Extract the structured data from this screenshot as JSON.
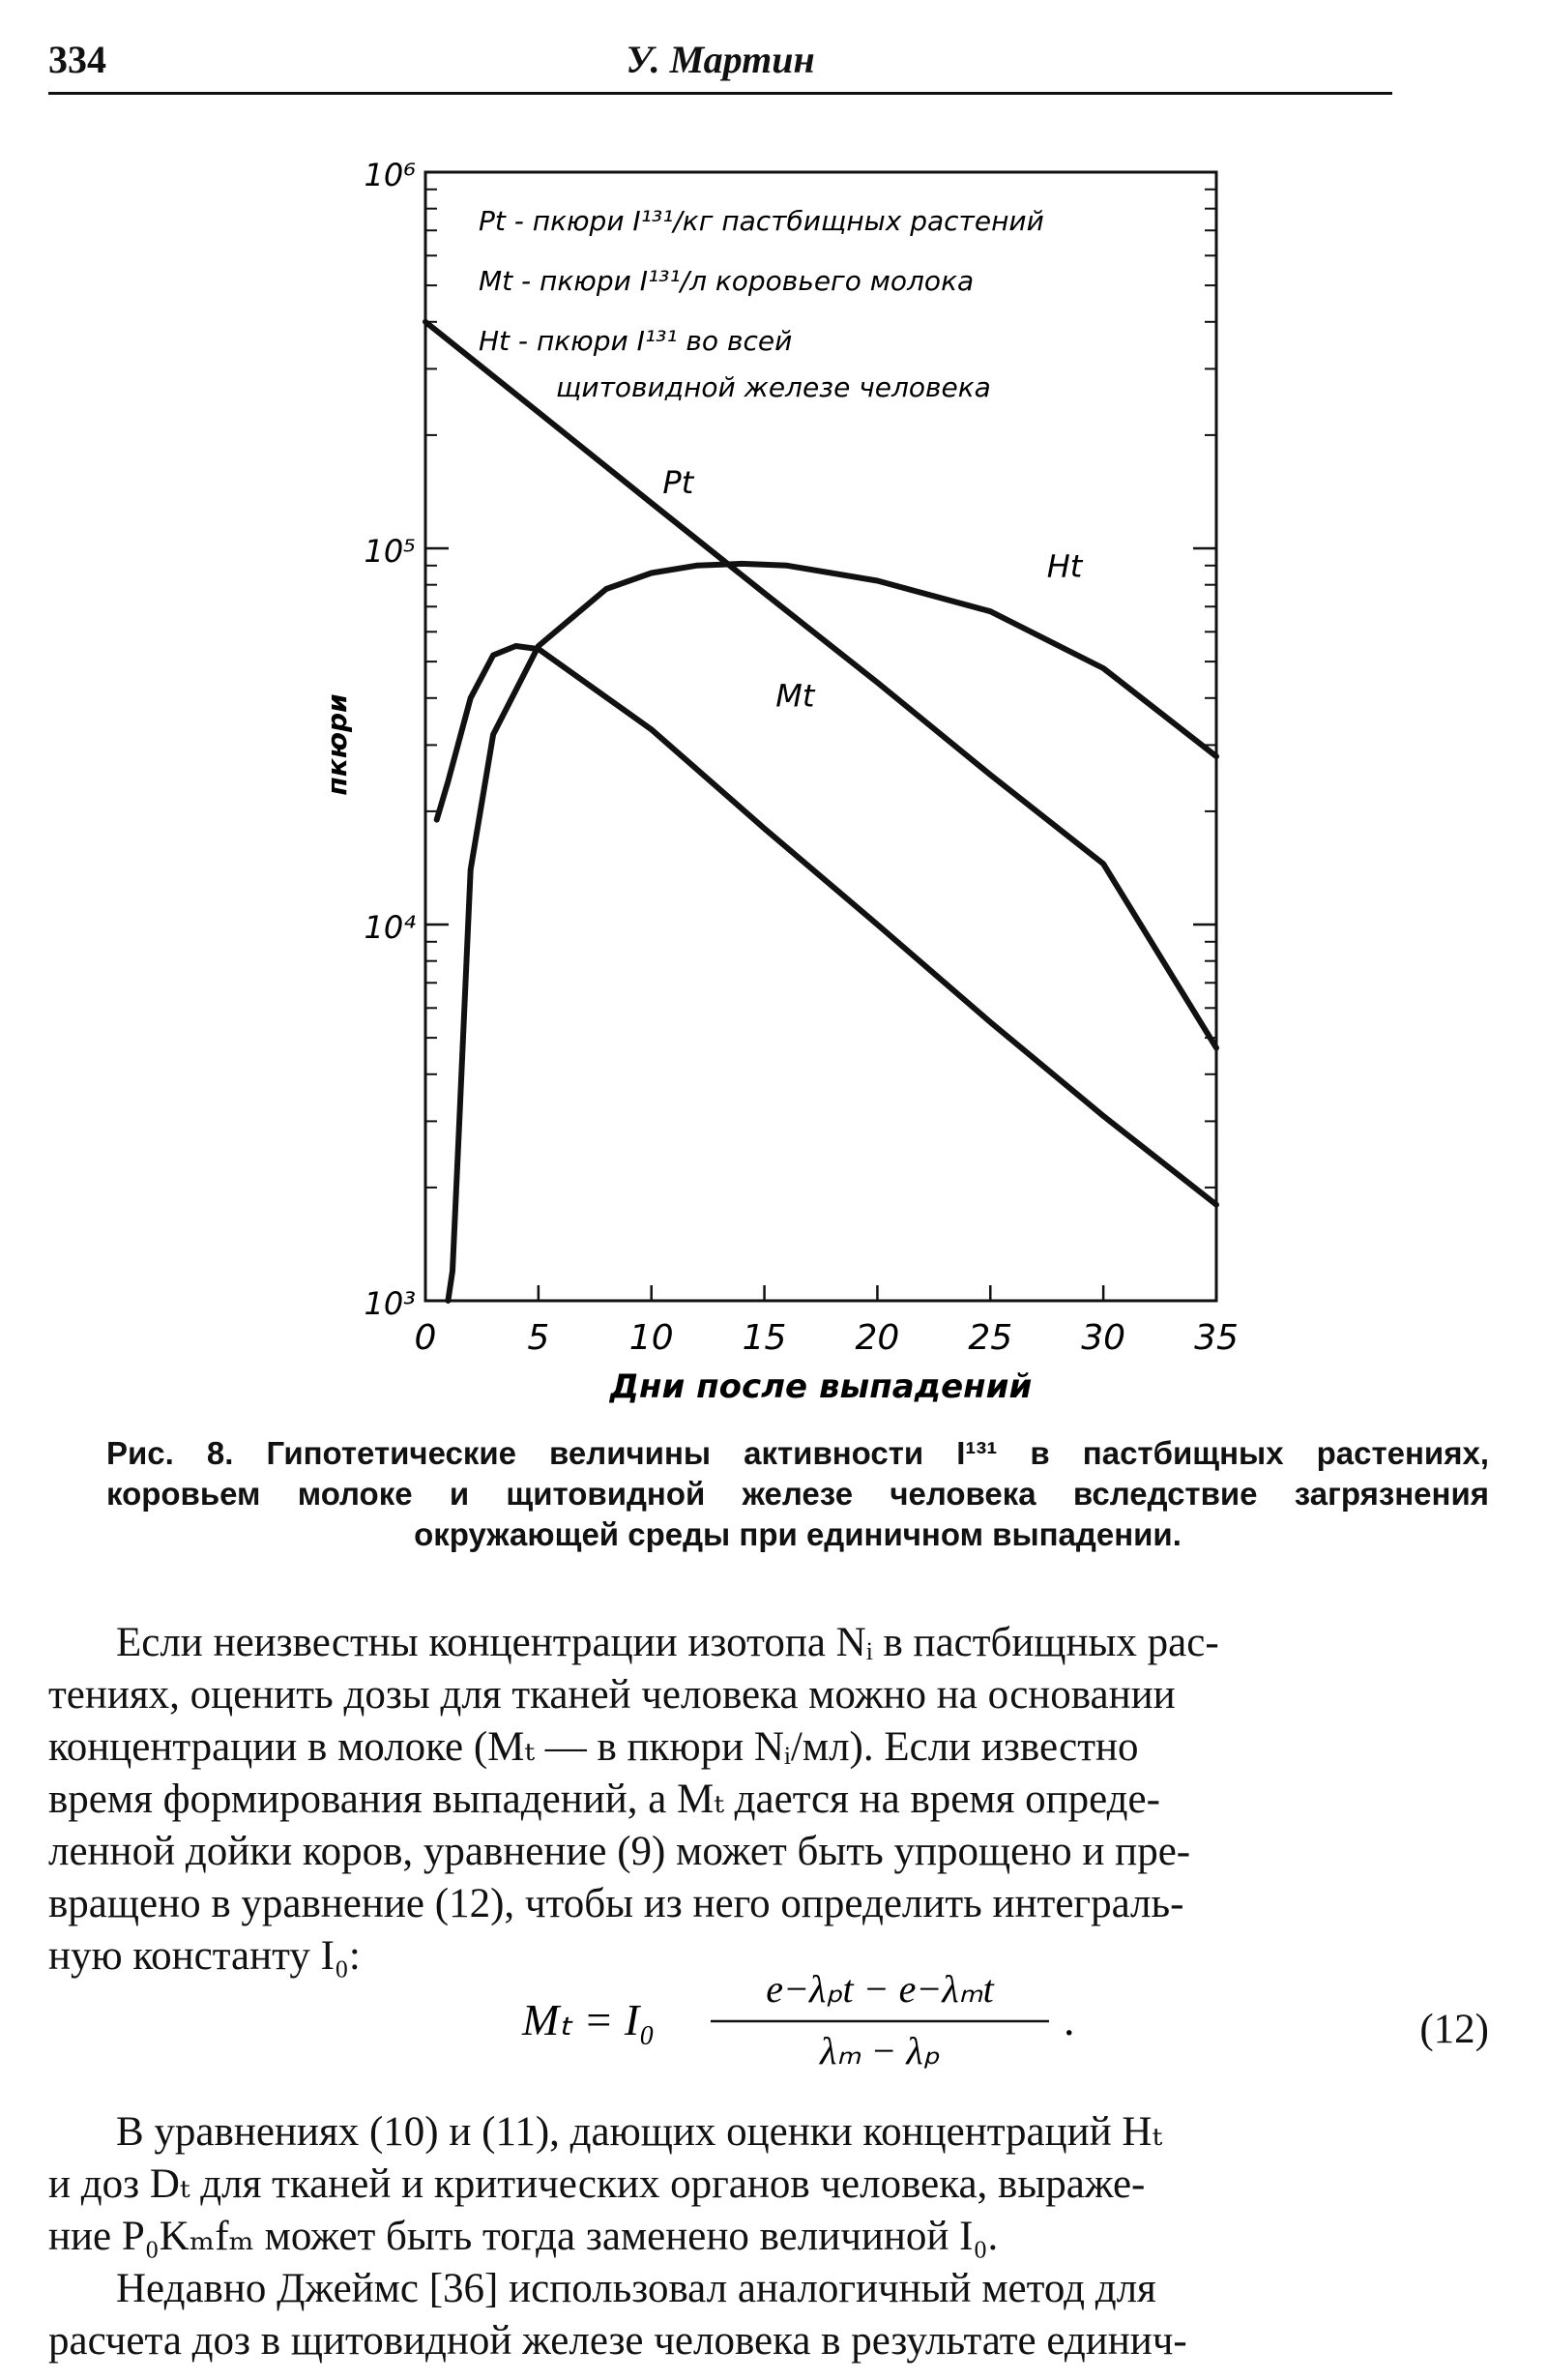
{
  "header": {
    "page_number": "334",
    "running_title": "У. Мартин"
  },
  "chart_data": {
    "type": "line",
    "xlabel": "Дни после выпадений",
    "ylabel": "пкюри",
    "x_ticks": [
      "0",
      "5",
      "10",
      "15",
      "20",
      "25",
      "30",
      "35"
    ],
    "y_ticks": [
      "10³",
      "10⁴",
      "10⁵",
      "10⁶"
    ],
    "xlim": [
      0,
      35
    ],
    "ylim": [
      1000,
      1000000
    ],
    "y_scale": "log",
    "legend_placement": "top-right",
    "legend": [
      "Pt - пкюри I¹³¹/кг пастбищных растений",
      "Mt - пкюри I¹³¹/л коровьего молока",
      "Ht - пкюри I¹³¹ во всей",
      "щитовидной железе человека"
    ],
    "series": [
      {
        "name": "Pt",
        "x": [
          0,
          5,
          10,
          15,
          20,
          25,
          30,
          35
        ],
        "y": [
          400000,
          230000,
          132000,
          76000,
          44000,
          25000,
          14500,
          4700
        ]
      },
      {
        "name": "Mt",
        "x": [
          0.5,
          1,
          2,
          3,
          4,
          5,
          10,
          15,
          20,
          25,
          30,
          35
        ],
        "y": [
          19000,
          24000,
          40000,
          52000,
          55000,
          54000,
          33000,
          18000,
          10000,
          5500,
          3100,
          1800
        ]
      },
      {
        "name": "Ht",
        "x": [
          1,
          1.2,
          1.5,
          2,
          3,
          5,
          8,
          10,
          12,
          14,
          16,
          20,
          25,
          30,
          35
        ],
        "y": [
          1000,
          1200,
          3000,
          14000,
          32000,
          55000,
          78000,
          86000,
          90000,
          91000,
          90000,
          82000,
          68000,
          48000,
          28000
        ]
      }
    ]
  },
  "caption": {
    "lines": [
      "Рис. 8. Гипотетические величины активности I¹³¹ в пастбищных растениях,",
      "коровьем молоке и щитовидной железе человека вследствие загрязнения",
      "окружающей среды при единичном выпадении."
    ]
  },
  "paragraphs": {
    "p1": [
      "Если неизвестны концентрации изотопа Nᵢ в пастбищных рас-",
      "тениях, оценить дозы для тканей человека можно на основании",
      "концентрации в молоке (Mₜ — в пкюри Nᵢ/мл). Если известно",
      "время формирования выпадений, а Mₜ дается на время опреде-",
      "ленной дойки коров, уравнение (9) может быть упрощено и пре-",
      "вращено в уравнение (12), чтобы из него определить интеграль-",
      "ную константу I₀:"
    ],
    "equation": "Mₜ = I₀ (e^(−λₚt) − e^(−λₘt)) / (λₘ − λₚ).",
    "equation_lhs": "Mₜ = I₀",
    "equation_numerator": "e−λₚt − e−λₘt",
    "equation_denominator": "λₘ − λₚ",
    "equation_number": "(12)",
    "p2": [
      "В уравнениях (10) и (11), дающих оценки концентраций Hₜ",
      "и доз Dₜ для тканей и критических органов человека, выраже-",
      "ние P₀Kₘfₘ может быть тогда заменено величиной I₀."
    ],
    "p3": [
      "Недавно Джеймс [36] использовал аналогичный метод для",
      "расчета доз в щитовидной железе человека в результате единич-"
    ]
  }
}
